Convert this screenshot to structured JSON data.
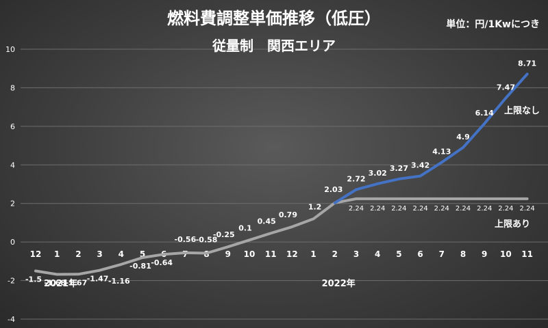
{
  "chart_data": {
    "type": "line",
    "title": "燃料費調整単価推移（低圧）",
    "subtitle": "従量制　関西エリア",
    "unit_note": "単位：円/1Kwにつき",
    "ylim": [
      -4,
      10
    ],
    "y_ticks": [
      "-4",
      "-2",
      "0",
      "2",
      "4",
      "6",
      "8",
      "10"
    ],
    "x_labels": [
      "12",
      "1",
      "2",
      "3",
      "4",
      "5",
      "6",
      "7",
      "8",
      "9",
      "10",
      "11",
      "12",
      "1",
      "2",
      "3",
      "4",
      "5",
      "6",
      "7",
      "8",
      "9",
      "10",
      "11"
    ],
    "year_labels": [
      {
        "text": "2021年",
        "index": 0
      },
      {
        "text": "2022年",
        "index": 13
      }
    ],
    "series": [
      {
        "name": "上限なし",
        "color": "#4472c4",
        "start_index": 14,
        "values": [
          2.03,
          2.72,
          3.02,
          3.27,
          3.42,
          4.13,
          4.9,
          6.14,
          7.47,
          8.71
        ],
        "labels": [
          "2.03",
          "2.72",
          "3.02",
          "3.27",
          "3.42",
          "4.13",
          "4.9",
          "6.14",
          "7.47",
          "8.71"
        ]
      },
      {
        "name": "上限あり",
        "color": "#a6a6a6",
        "start_index": 0,
        "values": [
          -1.5,
          -1.68,
          -1.67,
          -1.47,
          -1.16,
          -0.81,
          -0.64,
          -0.56,
          -0.58,
          -0.25,
          0.1,
          0.45,
          0.79,
          1.2,
          2.03,
          2.24,
          2.24,
          2.24,
          2.24,
          2.24,
          2.24,
          2.24,
          2.24,
          2.24
        ],
        "labels": [
          "-1.5",
          "-1.68",
          "-1.67",
          "-1.47",
          "-1.16",
          "-0.81",
          "-0.64",
          "-0.56",
          "-0.58",
          "-0.25",
          "0.1",
          "0.45",
          "0.79",
          "1.2",
          "",
          "2.24",
          "2.24",
          "2.24",
          "2.24",
          "2.24",
          "2.24",
          "2.24",
          "2.24",
          "2.24"
        ]
      }
    ],
    "grid": true,
    "legend": "inline-labels"
  }
}
